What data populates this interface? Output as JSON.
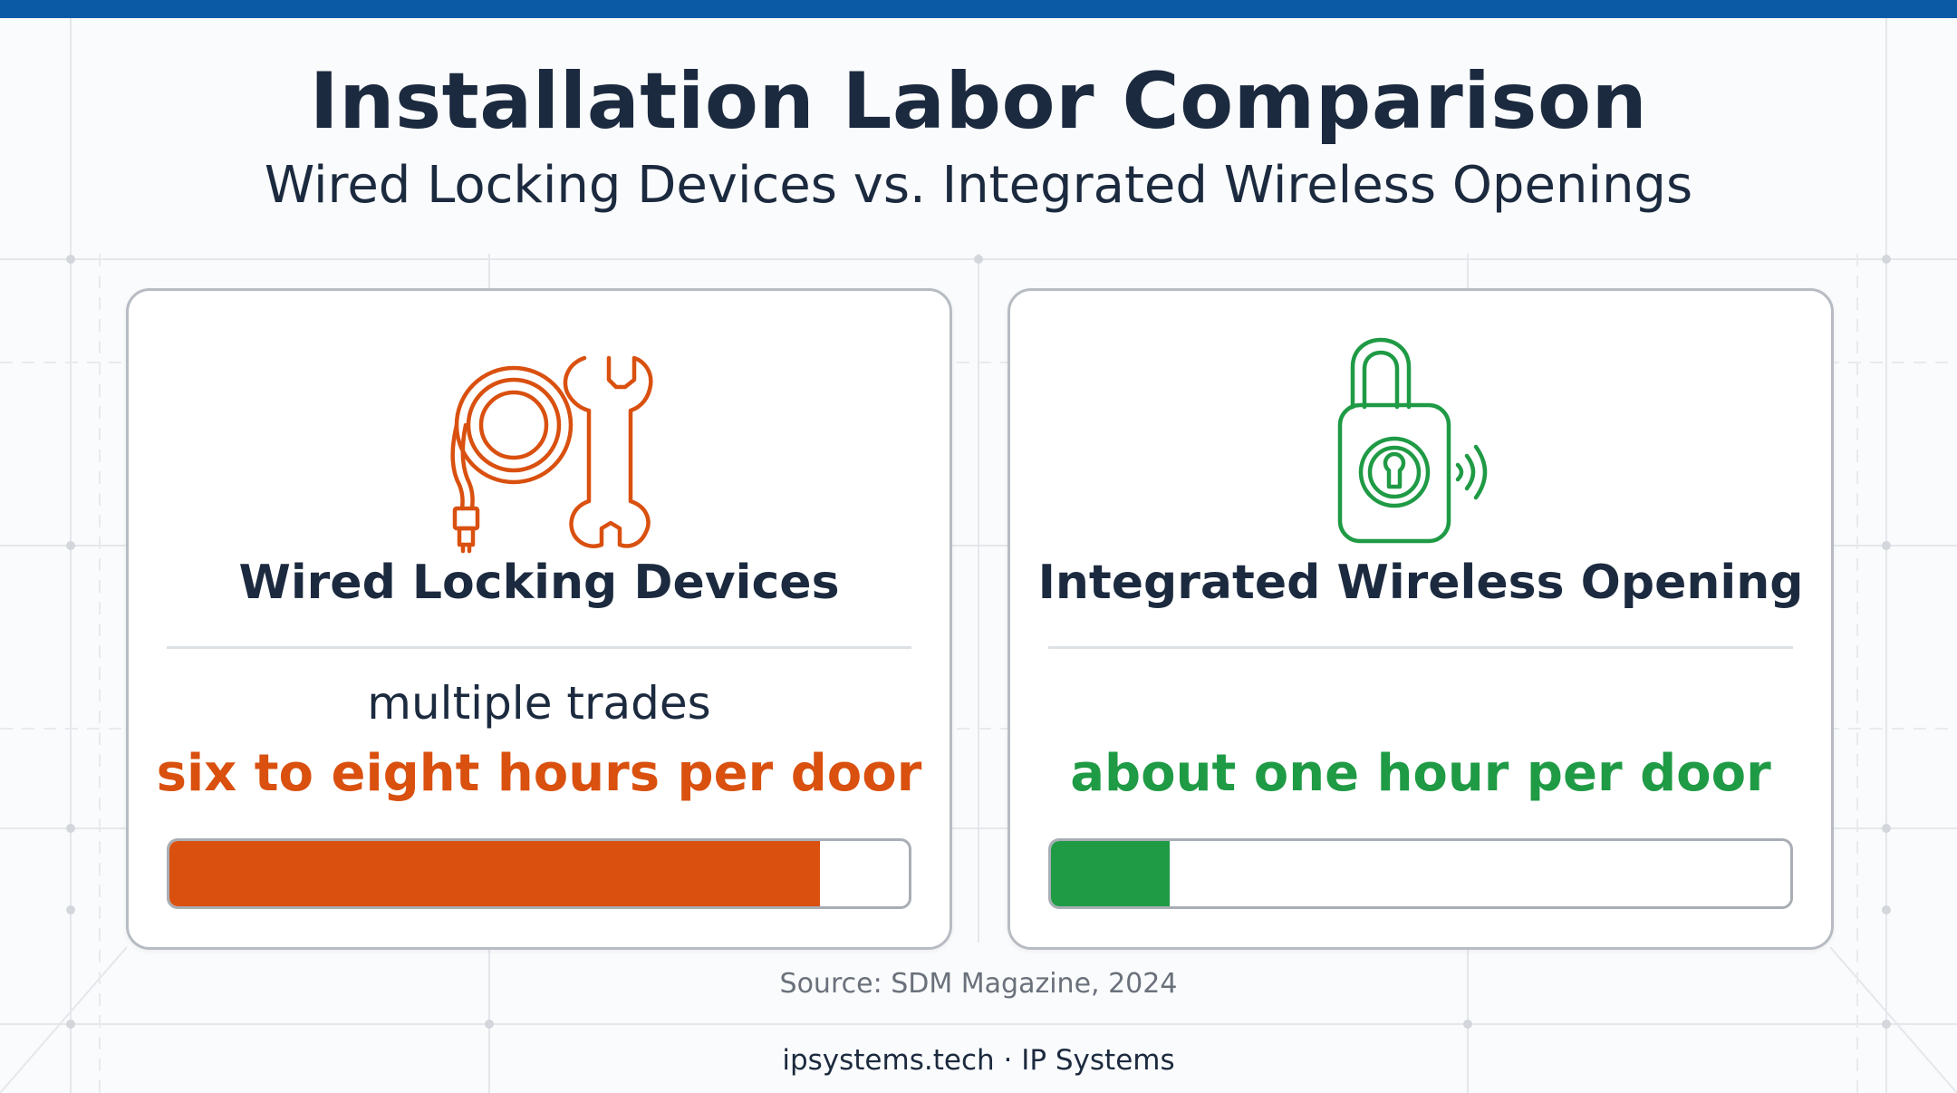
{
  "header": {
    "title": "Installation Labor Comparison",
    "subtitle": "Wired Locking Devices vs. Integrated Wireless Openings"
  },
  "cards": [
    {
      "title": "Wired Locking Devices",
      "note": "multiple trades",
      "value": "six to eight hours per door",
      "icon": "cable-and-wrench-icon",
      "color": "#d9500f",
      "bar_fraction": 0.88
    },
    {
      "title": "Integrated Wireless Opening",
      "note": "",
      "value": "about one hour per door",
      "icon": "wireless-padlock-icon",
      "color": "#1f9a45",
      "bar_fraction": 0.16
    }
  ],
  "source": "Source: SDM Magazine, 2024",
  "footer": "ipsystems.tech · IP Systems",
  "colors": {
    "top_bar": "#0b5aa6",
    "wired_accent": "#d9500f",
    "wireless_accent": "#1f9a45"
  }
}
